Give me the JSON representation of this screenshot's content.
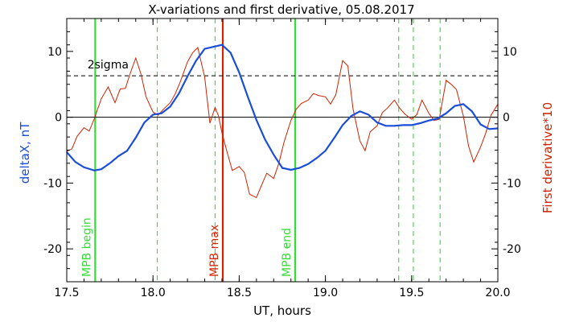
{
  "chart_data": {
    "type": "line",
    "title": "X-variations and first derivative, 05.08.2017",
    "xlabel": "UT, hours",
    "ylabel_left": "deltaX, nT",
    "ylabel_right": "First derivative*10",
    "xlim": [
      17.5,
      20.0
    ],
    "ylim": [
      -25,
      15
    ],
    "x_ticks": [
      17.5,
      18.0,
      18.5,
      19.0,
      19.5,
      20.0
    ],
    "x_tick_labels": [
      "17.5",
      "18.0",
      "18.5",
      "19.0",
      "19.5",
      "20.0"
    ],
    "y_ticks": [
      -20,
      -10,
      0,
      10
    ],
    "y_tick_labels": [
      "-20",
      "-10",
      "0",
      "10"
    ],
    "zero_line": 0,
    "sigma_level": 6.3,
    "sigma_label": "2sigma",
    "colors": {
      "deltaX": "#1a4ed8",
      "derivative": "#cc2200",
      "mpb_begin_end": "#33dd33",
      "mpb_max": "#dd2200",
      "sigma": "#000000"
    },
    "series": [
      {
        "name": "deltaX, nT",
        "axis": "left",
        "x": [
          17.5,
          17.55,
          17.6,
          17.66,
          17.7,
          17.75,
          17.8,
          17.85,
          17.9,
          17.95,
          18.0,
          18.05,
          18.1,
          18.15,
          18.2,
          18.25,
          18.3,
          18.35,
          18.4,
          18.45,
          18.5,
          18.55,
          18.6,
          18.65,
          18.7,
          18.75,
          18.8,
          18.85,
          18.9,
          18.95,
          19.0,
          19.05,
          19.1,
          19.15,
          19.2,
          19.25,
          19.3,
          19.35,
          19.4,
          19.45,
          19.5,
          19.55,
          19.6,
          19.65,
          19.7,
          19.75,
          19.8,
          19.85,
          19.9,
          19.95,
          20.0
        ],
        "y": [
          -5.3,
          -6.8,
          -7.6,
          -8.1,
          -7.9,
          -7.0,
          -5.9,
          -5.1,
          -3.1,
          -0.8,
          0.4,
          0.6,
          1.6,
          3.6,
          6.2,
          8.6,
          10.4,
          10.7,
          11.0,
          9.8,
          6.8,
          3.1,
          -0.4,
          -3.4,
          -5.7,
          -7.7,
          -8.0,
          -7.7,
          -7.1,
          -6.2,
          -5.1,
          -3.2,
          -1.2,
          0.2,
          0.9,
          0.4,
          -0.8,
          -1.3,
          -1.3,
          -1.2,
          -1.2,
          -0.9,
          -0.5,
          -0.2,
          0.6,
          1.7,
          2.0,
          0.9,
          -1.1,
          -1.8,
          -1.7
        ]
      },
      {
        "name": "First derivative*10",
        "axis": "right",
        "x": [
          17.5,
          17.53,
          17.56,
          17.6,
          17.63,
          17.66,
          17.7,
          17.74,
          17.78,
          17.81,
          17.84,
          17.87,
          17.9,
          17.93,
          17.96,
          18.0,
          18.03,
          18.06,
          18.1,
          18.13,
          18.16,
          18.2,
          18.23,
          18.26,
          18.3,
          18.33,
          18.36,
          18.38,
          18.4,
          18.43,
          18.46,
          18.5,
          18.53,
          18.56,
          18.6,
          18.63,
          18.66,
          18.7,
          18.73,
          18.76,
          18.8,
          18.83,
          18.86,
          18.9,
          18.93,
          18.96,
          19.0,
          19.03,
          19.06,
          19.1,
          19.13,
          19.16,
          19.2,
          19.23,
          19.26,
          19.3,
          19.33,
          19.36,
          19.4,
          19.43,
          19.46,
          19.5,
          19.53,
          19.56,
          19.6,
          19.63,
          19.66,
          19.7,
          19.73,
          19.76,
          19.8,
          19.83,
          19.86,
          19.9,
          19.93,
          19.96,
          20.0
        ],
        "y": [
          -5.2,
          -4.8,
          -2.9,
          -1.6,
          -2.1,
          -0.2,
          2.8,
          4.6,
          2.2,
          4.3,
          4.4,
          6.8,
          9.0,
          6.6,
          3.1,
          0.8,
          0.3,
          1.2,
          2.2,
          3.6,
          5.5,
          8.4,
          9.8,
          10.6,
          6.1,
          -0.9,
          1.5,
          0.2,
          -2.4,
          -5.3,
          -8.1,
          -7.5,
          -8.4,
          -11.7,
          -12.2,
          -10.3,
          -8.5,
          -9.3,
          -7.0,
          -3.8,
          -0.5,
          1.2,
          2.1,
          2.6,
          3.6,
          3.3,
          3.1,
          2.0,
          3.4,
          8.6,
          7.8,
          1.3,
          -3.6,
          -5.1,
          -2.2,
          -1.3,
          0.7,
          1.4,
          2.6,
          1.4,
          0.5,
          -0.3,
          0.4,
          2.6,
          0.6,
          -0.5,
          -0.3,
          5.6,
          5.0,
          4.2,
          0.2,
          -4.4,
          -6.8,
          -4.5,
          -2.4,
          0.3,
          2.0
        ]
      }
    ],
    "vlines": [
      {
        "x": 17.665,
        "style": "solid",
        "color": "#33dd33",
        "label": "MPB begin"
      },
      {
        "x": 18.405,
        "style": "solid",
        "color": "#dd2200",
        "label": "MPB max"
      },
      {
        "x": 18.825,
        "style": "solid",
        "color": "#33dd33",
        "label": "MPB end"
      },
      {
        "x": 18.025,
        "style": "dashed",
        "color": "#33dd33",
        "label": ""
      },
      {
        "x": 18.36,
        "style": "dashed",
        "color": "#33dd33",
        "label": ""
      },
      {
        "x": 19.425,
        "style": "dashed",
        "color": "#33dd33",
        "label": ""
      },
      {
        "x": 19.51,
        "style": "dashed",
        "color": "#33dd33",
        "label": ""
      },
      {
        "x": 19.665,
        "style": "dashed",
        "color": "#33dd33",
        "label": ""
      }
    ]
  }
}
